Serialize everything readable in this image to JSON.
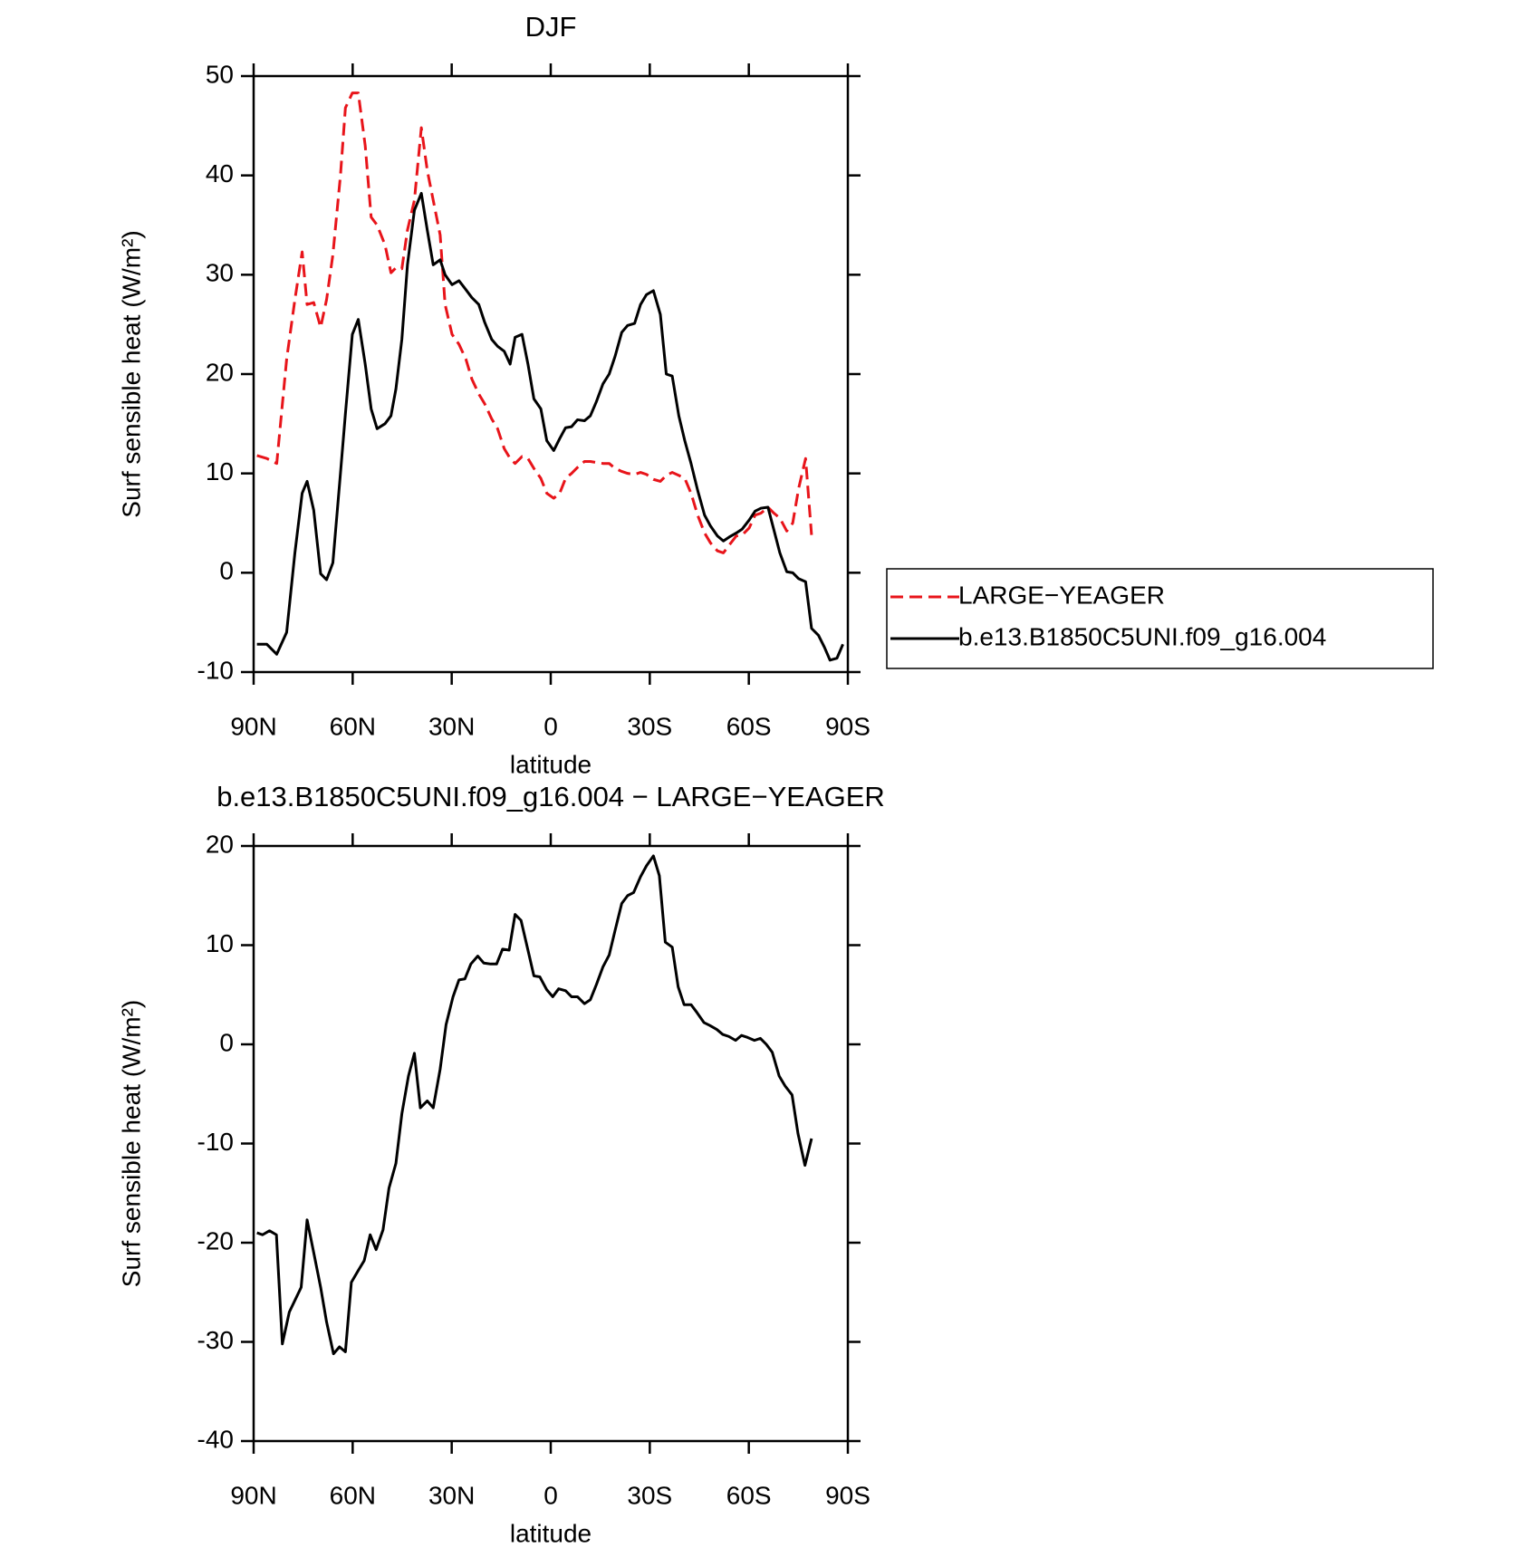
{
  "chart_data": [
    {
      "type": "line",
      "title": "DJF",
      "xlabel": "latitude",
      "ylabel": "Surf sensible heat (W/m²)",
      "x": [
        89,
        86,
        83,
        80,
        77.5,
        75.3,
        73.8,
        71.8,
        69.7,
        67.9,
        66,
        63.7,
        62.2,
        60.1,
        58.3,
        56.2,
        54.4,
        52.6,
        50.2,
        48.4,
        46.9,
        45.1,
        43.4,
        41.3,
        39.2,
        37.4,
        35.6,
        33.5,
        32,
        29.9,
        27.8,
        25.7,
        23.9,
        21.8,
        20,
        17.9,
        16.1,
        14.1,
        12.3,
        10.8,
        8.7,
        6.9,
        5.1,
        3,
        1.2,
        -0.9,
        -2.7,
        -4.5,
        -6.3,
        -8.1,
        -10.2,
        -12,
        -13.8,
        -15.8,
        -17.7,
        -19.5,
        -21.5,
        -23.3,
        -25.4,
        -27.2,
        -29,
        -31.1,
        -33.2,
        -35,
        -36.8,
        -38.8,
        -40.6,
        -42.5,
        -44.5,
        -46.6,
        -48.4,
        -50.5,
        -52.3,
        -54.1,
        -56.2,
        -58,
        -60.1,
        -61.9,
        -63.7,
        -65.8,
        -67.6,
        -69.4,
        -71.5,
        -73.3,
        -75.1,
        -77.2,
        -79,
        -81.1,
        -82.9,
        -84.6,
        -86.7,
        -88.5
      ],
      "series": [
        {
          "name": "LARGE−YEAGER",
          "color": "#e8141a",
          "linestyle": "dashed",
          "values": [
            11.8,
            11.5,
            11,
            21.5,
            27.5,
            32.3,
            27,
            27.2,
            24.7,
            27.5,
            32,
            40,
            46.8,
            48.3,
            48.3,
            43,
            35.8,
            35,
            33,
            30.2,
            30.7,
            30.6,
            34.5,
            37.5,
            44.8,
            40.5,
            37.5,
            34,
            27,
            24,
            23,
            21.5,
            19.5,
            18,
            17,
            15.5,
            14.5,
            12.5,
            11.5,
            11,
            11.7,
            11.5,
            10.5,
            9.5,
            8,
            7.5,
            8,
            9.5,
            10,
            10.6,
            11.2,
            11.2,
            11.1,
            11,
            11,
            10.5,
            10.2,
            10,
            9.9,
            10.1,
            9.9,
            9.4,
            9.2,
            9.8,
            10.1,
            9.8,
            9.5,
            8,
            5.8,
            4,
            3,
            2.2,
            2,
            2.8,
            3.7,
            3.8,
            4.5,
            5.8,
            6,
            6.6,
            6,
            5.5,
            4.2,
            5,
            8.5,
            11.5,
            3.8,
            null,
            null,
            null,
            null,
            null
          ]
        },
        {
          "name": "b.e13.B1850C5UNI.f09_g16.004",
          "color": "#000000",
          "linestyle": "solid",
          "values": [
            -7.2,
            -7.2,
            -8.2,
            -6,
            2,
            8,
            9.2,
            6.3,
            -0.1,
            -0.7,
            1,
            10,
            16,
            24,
            25.5,
            21,
            16.5,
            14.5,
            15,
            15.8,
            18.5,
            23.5,
            31,
            36.5,
            38.2,
            34.5,
            31,
            31.5,
            30,
            29,
            29.4,
            28.5,
            27.7,
            27,
            25.2,
            23.5,
            22.8,
            22.3,
            21,
            23.7,
            24,
            21,
            17.5,
            16.5,
            13.3,
            12.3,
            13.5,
            14.6,
            14.7,
            15.4,
            15.3,
            15.8,
            17.2,
            19,
            20,
            21.8,
            24.2,
            24.9,
            25.1,
            27,
            28,
            28.4,
            26,
            20,
            19.8,
            15.8,
            13.3,
            11,
            8.3,
            5.8,
            4.7,
            3.7,
            3.2,
            3.6,
            4,
            4.4,
            5.3,
            6.2,
            6.5,
            6.6,
            4.3,
            2,
            0.1,
            0,
            -0.6,
            -0.9,
            -5.6,
            -6.3,
            -7.5,
            -8.8,
            -8.6,
            -7.2
          ]
        }
      ],
      "xlim": [
        90,
        -90
      ],
      "xticks": [
        {
          "value": 90,
          "label": "90N"
        },
        {
          "value": 60,
          "label": "60N"
        },
        {
          "value": 30,
          "label": "30N"
        },
        0,
        {
          "value": -30,
          "label": "30S"
        },
        {
          "value": -60,
          "label": "60S"
        },
        {
          "value": -90,
          "label": "90S"
        }
      ],
      "ylim": [
        -10,
        50
      ],
      "yticks": [
        -10,
        0,
        10,
        20,
        30,
        40,
        50
      ],
      "legend": "right"
    },
    {
      "type": "line",
      "title": "b.e13.B1850C5UNI.f09_g16.004 − LARGE−YEAGER",
      "xlabel": "latitude",
      "ylabel": "Surf sensible heat (W/m²)",
      "x": [
        89,
        87.3,
        85.2,
        83.1,
        81.3,
        79.2,
        75.6,
        73.8,
        71.8,
        69.7,
        67.9,
        65.8,
        64,
        62.2,
        60.4,
        58.3,
        56.5,
        54.7,
        52.9,
        50.8,
        49,
        46.9,
        45.1,
        43.1,
        41.3,
        39.5,
        37.4,
        35.6,
        33.5,
        31.7,
        29.6,
        27.8,
        26,
        24.2,
        22.1,
        20.3,
        18.2,
        16.4,
        14.6,
        12.6,
        10.8,
        9,
        6.9,
        5.1,
        3.3,
        1.2,
        -0.6,
        -2.4,
        -4.5,
        -6.3,
        -8.1,
        -10.2,
        -12,
        -13.8,
        -15.8,
        -17.7,
        -19.5,
        -21.5,
        -23.3,
        -25.1,
        -27.2,
        -29,
        -31.1,
        -32.9,
        -34.7,
        -36.8,
        -38.6,
        -40.4,
        -42.5,
        -44.3,
        -46.4,
        -48.2,
        -50.3,
        -52.1,
        -53.9,
        -56,
        -57.8,
        -59.6,
        -61.7,
        -63.5,
        -65.3,
        -67.1,
        -69.2,
        -71,
        -73.1,
        -74.9,
        -77,
        -79
      ],
      "values": [
        -19,
        -19.2,
        -18.8,
        -19.2,
        -30.2,
        -27,
        -24.5,
        -17.7,
        -21,
        -24.5,
        -28,
        -31.2,
        -30.5,
        -31,
        -24,
        -22.8,
        -21.8,
        -19.2,
        -20.7,
        -18.7,
        -14.5,
        -12,
        -7,
        -3.2,
        -0.9,
        -6.4,
        -5.7,
        -6.4,
        -2.5,
        2,
        4.8,
        6.5,
        6.6,
        8.1,
        8.9,
        8.2,
        8.1,
        8.1,
        9.6,
        9.5,
        13.1,
        12.5,
        9.5,
        6.9,
        6.8,
        5.5,
        4.8,
        5.6,
        5.4,
        4.8,
        4.8,
        4.1,
        4.5,
        6,
        7.8,
        9,
        11.5,
        14.2,
        15,
        15.3,
        16.9,
        18,
        19,
        17,
        10.3,
        9.8,
        5.8,
        4,
        4,
        3.2,
        2.2,
        1.9,
        1.5,
        1,
        0.8,
        0.4,
        0.9,
        0.7,
        0.4,
        0.6,
        0,
        -0.8,
        -3.2,
        -4.2,
        -5.1,
        -9,
        -12.2,
        -9.5
      ],
      "color": "#000000",
      "xlim": [
        90,
        -90
      ],
      "xticks": [
        {
          "value": 90,
          "label": "90N"
        },
        {
          "value": 60,
          "label": "60N"
        },
        {
          "value": 30,
          "label": "30N"
        },
        0,
        {
          "value": -30,
          "label": "30S"
        },
        {
          "value": -60,
          "label": "60S"
        },
        {
          "value": -90,
          "label": "90S"
        }
      ],
      "ylim": [
        -40,
        20
      ],
      "yticks": [
        -40,
        -30,
        -20,
        -10,
        0,
        10,
        20
      ]
    }
  ]
}
